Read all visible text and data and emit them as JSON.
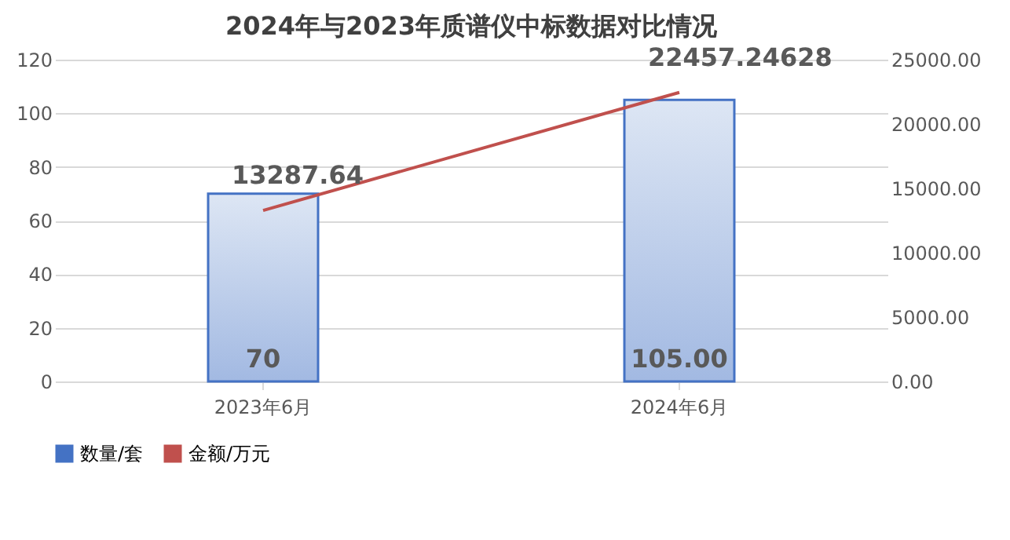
{
  "chart_data": {
    "type": "bar",
    "title": "2024年与2023年质谱仪中标数据对比情况",
    "categories": [
      "2023年6月",
      "2024年6月"
    ],
    "series": [
      {
        "name": "数量/套",
        "color": "#4472c4",
        "values": [
          70,
          105
        ],
        "value_labels": [
          "70",
          "105.00"
        ]
      },
      {
        "name": "金额/万元",
        "type": "line",
        "axis": "y2",
        "color": "#c0504d",
        "values": [
          13287.64,
          22457.24628
        ],
        "value_labels": [
          "13287.64",
          "22457.24628"
        ]
      }
    ],
    "ylim": [
      0,
      120
    ],
    "yticks": [
      0,
      20,
      40,
      60,
      80,
      100,
      120
    ],
    "y2lim": [
      0,
      25000
    ],
    "y2ticks": [
      {
        "value": 0,
        "label": "0.00"
      },
      {
        "value": 5000,
        "label": "5000.00"
      },
      {
        "value": 10000,
        "label": "10000.00"
      },
      {
        "value": 15000,
        "label": "15000.00"
      },
      {
        "value": 20000,
        "label": "20000.00"
      },
      {
        "value": 25000,
        "label": "25000.00"
      }
    ],
    "grid": "y",
    "legend": "bottom"
  }
}
